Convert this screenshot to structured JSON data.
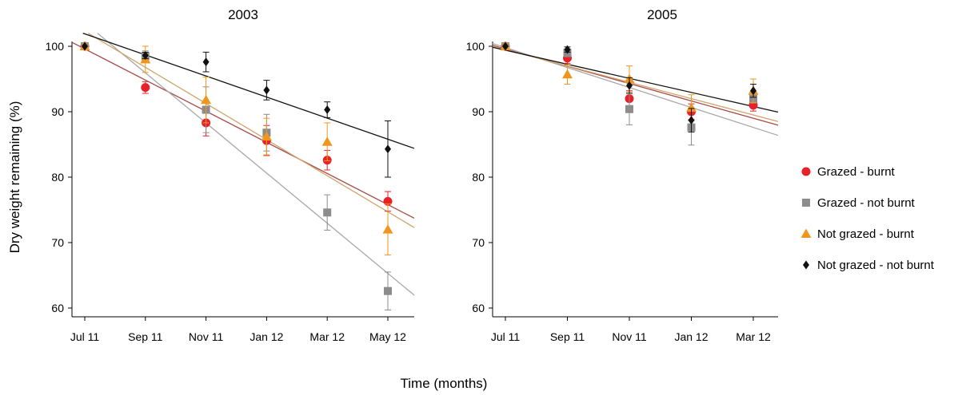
{
  "figure": {
    "ylabel": "Dry weight remaining (%)",
    "xlabel": "Time (months)"
  },
  "chart_data": [
    {
      "type": "scatter",
      "title": "2003",
      "categories": [
        "Jul 11",
        "Sep 11",
        "Nov 11",
        "Jan 12",
        "Mar 12",
        "May 12"
      ],
      "ylim": [
        60,
        100
      ],
      "yticks": [
        60,
        70,
        80,
        90,
        100
      ],
      "grid": false,
      "error_bars": true,
      "trendlines": true,
      "series": [
        {
          "name": "Grazed - burnt",
          "marker": "circle",
          "color": "#e8202a",
          "line_color": "#a84a4a",
          "values": [
            100,
            93.7,
            88.3,
            85.6,
            82.6,
            76.3
          ],
          "errors": [
            0.5,
            0.9,
            2.0,
            2.3,
            1.5,
            1.5
          ],
          "trend": [
            99.6,
            75.8
          ]
        },
        {
          "name": "Grazed - not burnt",
          "marker": "square",
          "color": "#8c8c8c",
          "line_color": "#a8a8a8",
          "values": [
            100,
            98.5,
            90.3,
            86.8,
            74.6,
            62.6
          ],
          "errors": [
            0.4,
            0.8,
            3.5,
            2.8,
            2.7,
            2.9
          ],
          "trend": [
            103.6,
            65.3
          ]
        },
        {
          "name": "Not grazed - burnt",
          "marker": "triangle",
          "color": "#f0961e",
          "line_color": "#cfa46a",
          "values": [
            100,
            98.0,
            91.8,
            86.2,
            85.4,
            72.0
          ],
          "errors": [
            0.4,
            2.0,
            3.5,
            2.8,
            2.9,
            3.9
          ],
          "trend": [
            102.3,
            74.7
          ]
        },
        {
          "name": "Not grazed - not burnt",
          "marker": "diamond",
          "color": "#111111",
          "line_color": "#111111",
          "values": [
            100,
            98.6,
            97.6,
            93.3,
            90.3,
            84.3
          ],
          "errors": [
            0.3,
            0.5,
            1.5,
            1.5,
            1.2,
            4.3
          ],
          "trend": [
            101.9,
            85.8
          ]
        }
      ]
    },
    {
      "type": "scatter",
      "title": "2005",
      "categories": [
        "Jul 11",
        "Sep 11",
        "Nov 11",
        "Jan 12",
        "Mar 12"
      ],
      "ylim": [
        60,
        100
      ],
      "yticks": [
        60,
        70,
        80,
        90,
        100
      ],
      "grid": false,
      "error_bars": true,
      "trendlines": true,
      "series": [
        {
          "name": "Grazed - burnt",
          "marker": "circle",
          "color": "#e8202a",
          "line_color": "#a84a4a",
          "values": [
            100,
            98.2,
            92.0,
            90.0,
            91.0
          ],
          "errors": [
            0.4,
            0.8,
            1.2,
            1.2,
            0.9
          ],
          "trend": [
            99.6,
            89.0
          ]
        },
        {
          "name": "Grazed - not burnt",
          "marker": "square",
          "color": "#8c8c8c",
          "line_color": "#a8a8a8",
          "values": [
            100,
            99.0,
            90.4,
            87.6,
            92.0
          ],
          "errors": [
            0.4,
            0.6,
            2.4,
            2.7,
            0.7
          ],
          "trend": [
            99.8,
            87.6
          ]
        },
        {
          "name": "Not grazed - burnt",
          "marker": "triangle",
          "color": "#f0961e",
          "line_color": "#cfa46a",
          "values": [
            100,
            95.7,
            95.0,
            90.6,
            93.2
          ],
          "errors": [
            0.4,
            1.5,
            2.0,
            2.0,
            1.8
          ],
          "trend": [
            99.5,
            89.5
          ]
        },
        {
          "name": "Not grazed - not burnt",
          "marker": "diamond",
          "color": "#111111",
          "line_color": "#111111",
          "values": [
            100,
            99.5,
            94.0,
            88.7,
            93.2
          ],
          "errors": [
            0.3,
            0.4,
            1.2,
            1.8,
            1.0
          ],
          "trend": [
            99.4,
            90.8
          ]
        }
      ]
    }
  ],
  "legend": {
    "placement": "right",
    "items": [
      {
        "label": "Grazed - burnt",
        "marker": "circle",
        "color": "#e8202a"
      },
      {
        "label": "Grazed - not burnt",
        "marker": "square",
        "color": "#8c8c8c"
      },
      {
        "label": "Not grazed - burnt",
        "marker": "triangle",
        "color": "#f0961e"
      },
      {
        "label": "Not grazed - not burnt",
        "marker": "diamond",
        "color": "#111111"
      }
    ]
  }
}
